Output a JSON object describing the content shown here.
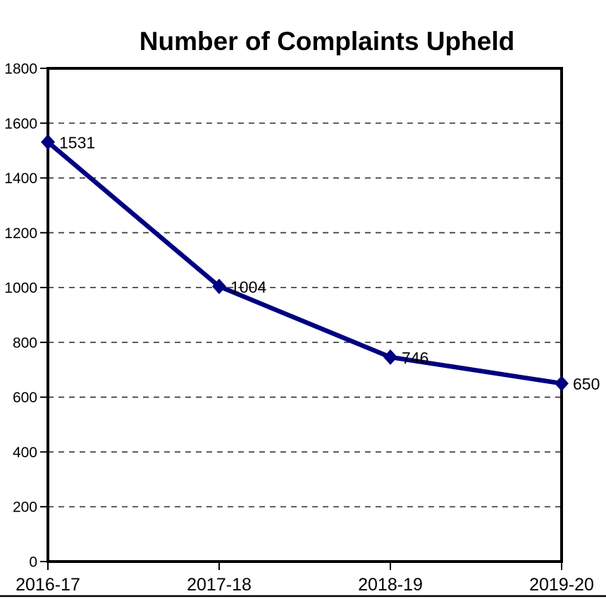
{
  "chart_data": {
    "type": "line",
    "title": "Number of Complaints Upheld",
    "categories": [
      "2016-17",
      "2017-18",
      "2018-19",
      "2019-20"
    ],
    "series": [
      {
        "name": "Number of Complaints Upheld",
        "values": [
          1531,
          1004,
          746,
          650
        ]
      }
    ],
    "data_labels": [
      "1531",
      "1004",
      "746",
      "650"
    ],
    "xlabel": "",
    "ylabel": "",
    "ylim": [
      0,
      1800
    ],
    "ytick_step": 200,
    "ytick_labels": [
      "0",
      "200",
      "400",
      "600",
      "800",
      "1000",
      "1200",
      "1400",
      "1600",
      "1800"
    ],
    "grid": "horizontal-dashed",
    "legend": "none",
    "marker": "diamond",
    "colors": {
      "line": "#000080",
      "marker": "#000080",
      "grid": "#454545",
      "axis": "#000000",
      "text": "#000000",
      "background": "#ffffff"
    }
  }
}
